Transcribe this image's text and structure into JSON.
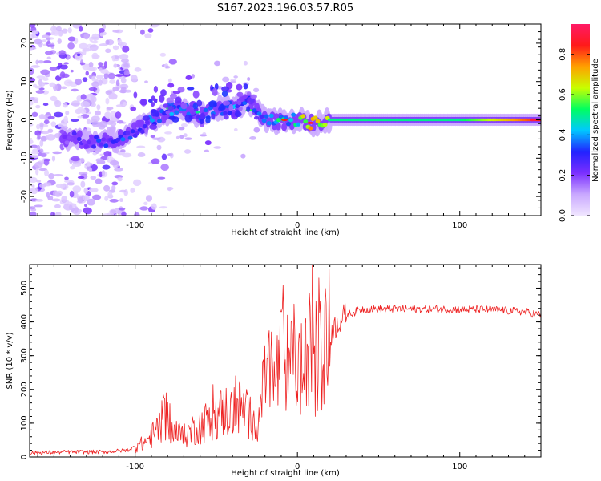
{
  "title": "S167.2023.196.03.57.R05",
  "chart_data": [
    {
      "type": "heatmap",
      "title": "S167.2023.196.03.57.R05",
      "xlabel": "Height of straight line (km)",
      "ylabel": "Frequency (Hz)",
      "xlim": [
        -165,
        150
      ],
      "ylim": [
        -25,
        25
      ],
      "xticks": [
        -100,
        0,
        100
      ],
      "xtick_labels": [
        "-100",
        "0",
        "100"
      ],
      "yticks": [
        -20,
        -10,
        0,
        10,
        20
      ],
      "ytick_labels": [
        "-20",
        "-10",
        "0",
        "10",
        "20"
      ],
      "colorbar": {
        "label": "Normalized spectral amplitude",
        "range": [
          0,
          0.95
        ],
        "ticks": [
          0.0,
          0.2,
          0.4,
          0.6,
          0.8
        ],
        "tick_labels": [
          "0.0",
          "0.2",
          "0.4",
          "0.6",
          "0.8"
        ]
      },
      "ridge": {
        "x": [
          -145,
          -130,
          -120,
          -110,
          -100,
          -90,
          -80,
          -70,
          -60,
          -50,
          -40,
          -30,
          -20,
          -10,
          0,
          10,
          20,
          50,
          100,
          150
        ],
        "y": [
          -4.5,
          -5.5,
          -5.5,
          -5,
          -3,
          0,
          2,
          3,
          1,
          3,
          3,
          5,
          0,
          -0.5,
          0,
          -1,
          0,
          0,
          0,
          0
        ],
        "amp": [
          0.2,
          0.25,
          0.3,
          0.32,
          0.3,
          0.35,
          0.4,
          0.35,
          0.3,
          0.35,
          0.35,
          0.4,
          0.35,
          0.5,
          0.45,
          0.85,
          0.5,
          0.5,
          0.5,
          0.85
        ]
      }
    },
    {
      "type": "line",
      "xlabel": "Height of straight line (km)",
      "ylabel": "SNR (10 * v/v)",
      "xlim": [
        -165,
        150
      ],
      "ylim": [
        0,
        570
      ],
      "xticks": [
        -100,
        0,
        100
      ],
      "xtick_labels": [
        "-100",
        "0",
        "100"
      ],
      "yticks": [
        0,
        100,
        200,
        300,
        400,
        500
      ],
      "ytick_labels": [
        "0",
        "100",
        "200",
        "300",
        "400",
        "500"
      ],
      "series": [
        {
          "name": "SNR",
          "x": [
            -165,
            -140,
            -120,
            -105,
            -95,
            -90,
            -85,
            -82,
            -80,
            -78,
            -75,
            -70,
            -65,
            -60,
            -55,
            -50,
            -45,
            -40,
            -35,
            -30,
            -25,
            -20,
            -18,
            -15,
            -12,
            -10,
            -8,
            -5,
            -3,
            0,
            5,
            8,
            10,
            12,
            15,
            20,
            25,
            30,
            40,
            60,
            80,
            100,
            120,
            140,
            150
          ],
          "y": [
            12,
            15,
            15,
            20,
            40,
            60,
            90,
            120,
            110,
            80,
            70,
            60,
            80,
            90,
            110,
            120,
            140,
            130,
            150,
            120,
            100,
            210,
            250,
            200,
            260,
            300,
            330,
            220,
            300,
            270,
            250,
            330,
            390,
            260,
            340,
            360,
            400,
            420,
            438,
            438,
            438,
            437,
            436,
            430,
            420
          ]
        }
      ],
      "spikes": [
        {
          "x": -81,
          "y": 190
        },
        {
          "x": -38,
          "y": 240
        },
        {
          "x": -20,
          "y": 330
        },
        {
          "x": -16,
          "y": 370
        },
        {
          "x": -10,
          "y": 430
        },
        {
          "x": -6,
          "y": 420
        },
        {
          "x": 5,
          "y": 410
        },
        {
          "x": 9,
          "y": 570
        },
        {
          "x": 11,
          "y": 120
        }
      ]
    }
  ],
  "colors": {
    "line": "#ee2222",
    "colorbar_stops": [
      "#f0e6ff",
      "#c9a8ff",
      "#7b2fff",
      "#2222ff",
      "#00c8ff",
      "#00ff60",
      "#c8ff00",
      "#ffa000",
      "#ff1a1a",
      "#ff1a66"
    ]
  }
}
